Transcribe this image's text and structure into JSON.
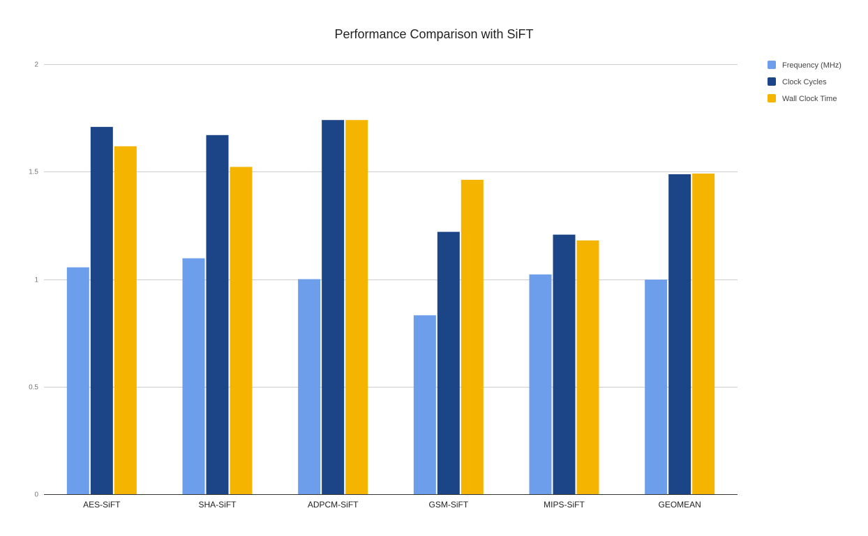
{
  "chart_data": {
    "type": "bar",
    "title": "Performance Comparison with SiFT",
    "xlabel": "",
    "ylabel": "",
    "ylim": [
      0,
      2
    ],
    "yticks": [
      "0",
      "0.5",
      "1",
      "1.5",
      "2"
    ],
    "grid": true,
    "legend_position": "top-right",
    "categories": [
      "AES-SiFT",
      "SHA-SiFT",
      "ADPCM-SiFT",
      "GSM-SiFT",
      "MIPS-SiFT",
      "GEOMEAN"
    ],
    "series": [
      {
        "name": "Frequency (MHz)",
        "color": "#6d9eeb",
        "values": [
          1.055,
          1.097,
          1.0,
          0.832,
          1.022,
          0.998
        ]
      },
      {
        "name": "Clock Cycles",
        "color": "#1c4587",
        "values": [
          1.708,
          1.67,
          1.74,
          1.22,
          1.207,
          1.488
        ]
      },
      {
        "name": "Wall Clock Time",
        "color": "#f4b400",
        "values": [
          1.618,
          1.522,
          1.74,
          1.462,
          1.18,
          1.491
        ]
      }
    ]
  }
}
